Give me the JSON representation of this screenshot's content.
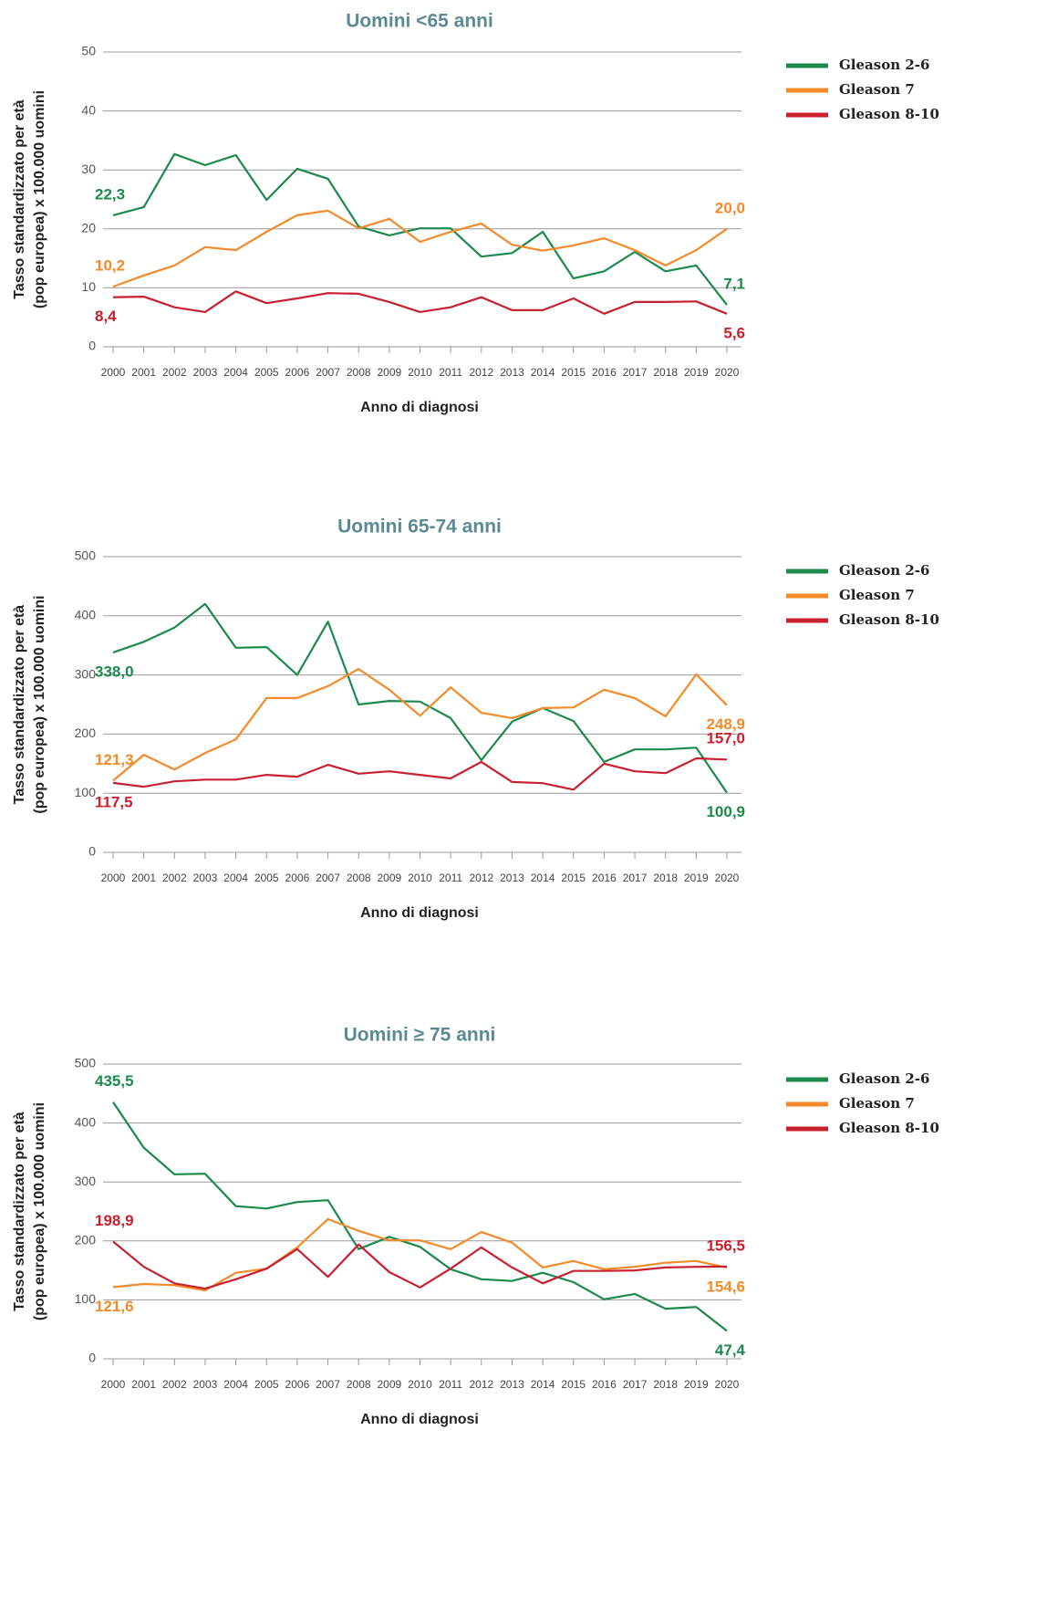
{
  "chart_data": [
    {
      "type": "line",
      "title": "Uomini <65 anni",
      "xlabel": "Anno di diagnosi",
      "ylabel": [
        "Tasso standardizzato per età",
        "(pop europea) x 100.000 uomini"
      ],
      "categories": [
        "2000",
        "2001",
        "2002",
        "2003",
        "2004",
        "2005",
        "2006",
        "2007",
        "2008",
        "2009",
        "2010",
        "2011",
        "2012",
        "2013",
        "2014",
        "2015",
        "2016",
        "2017",
        "2018",
        "2019",
        "2020"
      ],
      "ylim": [
        0,
        50
      ],
      "yticks": [
        0,
        10,
        20,
        30,
        40,
        50
      ],
      "grid": true,
      "legend": "right",
      "series": [
        {
          "name": "Gleason 2-6",
          "color": "#1b8a4b",
          "values": [
            22.3,
            23.7,
            32.7,
            30.8,
            32.5,
            24.9,
            30.2,
            28.5,
            20.4,
            18.9,
            20.1,
            20.1,
            15.3,
            15.9,
            19.5,
            11.6,
            12.8,
            16.1,
            12.8,
            13.8,
            7.1
          ],
          "value_labels": [
            "22,3",
            null,
            null,
            null,
            null,
            null,
            null,
            null,
            null,
            null,
            null,
            null,
            null,
            null,
            null,
            null,
            null,
            null,
            null,
            null,
            "7,1"
          ]
        },
        {
          "name": "Gleason 7",
          "color": "#f28a2a",
          "values": [
            10.2,
            12.1,
            13.8,
            16.9,
            16.4,
            19.5,
            22.3,
            23.1,
            20.1,
            21.7,
            17.8,
            19.5,
            20.9,
            17.3,
            16.3,
            17.2,
            18.4,
            16.4,
            13.8,
            16.4,
            20.0
          ],
          "value_labels": [
            "10,2",
            null,
            null,
            null,
            null,
            null,
            null,
            null,
            null,
            null,
            null,
            null,
            null,
            null,
            null,
            null,
            null,
            null,
            null,
            null,
            "20,0"
          ]
        },
        {
          "name": "Gleason 8-10",
          "color": "#c8202f",
          "values": [
            8.4,
            8.5,
            6.7,
            5.9,
            9.4,
            7.4,
            8.2,
            9.1,
            9.0,
            7.6,
            5.9,
            6.7,
            8.4,
            6.2,
            6.2,
            8.2,
            5.6,
            7.6,
            7.6,
            7.7,
            5.6
          ],
          "value_labels": [
            "8,4",
            null,
            null,
            null,
            null,
            null,
            null,
            null,
            null,
            null,
            null,
            null,
            null,
            null,
            null,
            null,
            null,
            null,
            null,
            null,
            "5,6"
          ]
        }
      ]
    },
    {
      "type": "line",
      "title": "Uomini 65-74 anni",
      "xlabel": "Anno di diagnosi",
      "ylabel": [
        "Tasso standardizzato per età",
        "(pop europea) x 100.000 uomini"
      ],
      "categories": [
        "2000",
        "2001",
        "2002",
        "2003",
        "2004",
        "2005",
        "2006",
        "2007",
        "2008",
        "2009",
        "2010",
        "2011",
        "2012",
        "2013",
        "2014",
        "2015",
        "2016",
        "2017",
        "2018",
        "2019",
        "2020"
      ],
      "ylim": [
        0,
        500
      ],
      "yticks": [
        0,
        100,
        200,
        300,
        400,
        500
      ],
      "grid": true,
      "legend": "right",
      "series": [
        {
          "name": "Gleason 2-6",
          "color": "#1b8a4b",
          "values": [
            338.0,
            356,
            380,
            420,
            346,
            347,
            300,
            390,
            250,
            256,
            255,
            227,
            156,
            221,
            244,
            222,
            153,
            174,
            174,
            177,
            100.9
          ],
          "value_labels": [
            "338,0",
            null,
            null,
            null,
            null,
            null,
            null,
            null,
            null,
            null,
            null,
            null,
            null,
            null,
            null,
            null,
            null,
            null,
            null,
            null,
            "100,9"
          ]
        },
        {
          "name": "Gleason 7",
          "color": "#f28a2a",
          "values": [
            121.3,
            165,
            140,
            168,
            191,
            261,
            261,
            281,
            310,
            275,
            231,
            279,
            236,
            227,
            244,
            245,
            275,
            261,
            230,
            301,
            248.9
          ],
          "value_labels": [
            "121,3",
            null,
            null,
            null,
            null,
            null,
            null,
            null,
            null,
            null,
            null,
            null,
            null,
            null,
            null,
            null,
            null,
            null,
            null,
            null,
            "248,9"
          ]
        },
        {
          "name": "Gleason 8-10",
          "color": "#c8202f",
          "values": [
            117.5,
            111,
            120,
            123,
            123,
            131,
            128,
            148,
            133,
            137,
            131,
            125,
            153,
            119,
            117,
            106,
            150,
            137,
            134,
            159,
            157.0
          ],
          "value_labels": [
            "117,5",
            null,
            null,
            null,
            null,
            null,
            null,
            null,
            null,
            null,
            null,
            null,
            null,
            null,
            null,
            null,
            null,
            null,
            null,
            null,
            "157,0"
          ]
        }
      ]
    },
    {
      "type": "line",
      "title": "Uomini ≥ 75 anni",
      "xlabel": "Anno di diagnosi",
      "ylabel": [
        "Tasso standardizzato per età",
        "(pop europea) x 100.000 uomini"
      ],
      "categories": [
        "2000",
        "2001",
        "2002",
        "2003",
        "2004",
        "2005",
        "2006",
        "2007",
        "2008",
        "2009",
        "2010",
        "2011",
        "2012",
        "2013",
        "2014",
        "2015",
        "2016",
        "2017",
        "2018",
        "2019",
        "2020"
      ],
      "ylim": [
        0,
        500
      ],
      "yticks": [
        0,
        100,
        200,
        300,
        400,
        500
      ],
      "grid": true,
      "legend": "right",
      "series": [
        {
          "name": "Gleason 2-6",
          "color": "#1b8a4b",
          "values": [
            435.5,
            358,
            313,
            314,
            259,
            255,
            266,
            269,
            186,
            207,
            190,
            152,
            135,
            132,
            146,
            130,
            101,
            110,
            85,
            88,
            47.4
          ],
          "value_labels": [
            "435,5",
            null,
            null,
            null,
            null,
            null,
            null,
            null,
            null,
            null,
            null,
            null,
            null,
            null,
            null,
            null,
            null,
            null,
            null,
            null,
            "47,4"
          ]
        },
        {
          "name": "Gleason 7",
          "color": "#f28a2a",
          "values": [
            121.6,
            127,
            125,
            116,
            146,
            153,
            189,
            237,
            217,
            201,
            201,
            186,
            215,
            197,
            155,
            166,
            152,
            156,
            163,
            166,
            154.6
          ],
          "value_labels": [
            "121,6",
            null,
            null,
            null,
            null,
            null,
            null,
            null,
            null,
            null,
            null,
            null,
            null,
            null,
            null,
            null,
            null,
            null,
            null,
            null,
            "154,6"
          ]
        },
        {
          "name": "Gleason 8-10",
          "color": "#c8202f",
          "values": [
            198.9,
            156,
            128,
            119,
            135,
            153,
            186,
            139,
            194,
            147,
            121,
            153,
            189,
            155,
            128,
            149,
            149,
            150,
            155,
            156,
            156.5
          ],
          "value_labels": [
            "198,9",
            null,
            null,
            null,
            null,
            null,
            null,
            null,
            null,
            null,
            null,
            null,
            null,
            null,
            null,
            null,
            null,
            null,
            null,
            null,
            "156,5"
          ]
        }
      ]
    }
  ]
}
